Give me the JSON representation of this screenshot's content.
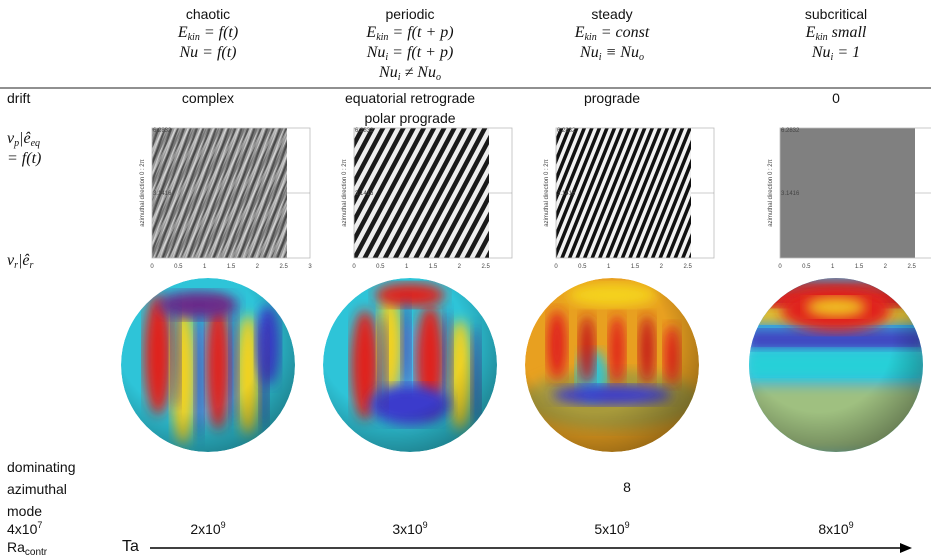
{
  "columns": [
    {
      "regime": "chaotic",
      "equations": [
        [
          "E",
          "kin",
          " = f(t)"
        ],
        [
          "Nu = f(t)"
        ]
      ],
      "drift": [
        "complex"
      ],
      "plot": {
        "yticks": [
          "6.2832",
          "3.1416"
        ],
        "xticks": [
          "0",
          "0.5",
          "1",
          "1.5",
          "2",
          "2.5",
          "3"
        ],
        "ylabel": "azimuthal direction 0 : 2π"
      },
      "ta": [
        "2x10",
        "9"
      ]
    },
    {
      "regime": "periodic",
      "equations": [
        [
          "E",
          "kin",
          " = f(t + p)"
        ],
        [
          "Nu",
          "i",
          " = f(t + p)"
        ],
        [
          "Nu",
          "i",
          " ≠ Nu",
          "o"
        ]
      ],
      "drift": [
        "equatorial retrograde",
        "polar prograde"
      ],
      "plot": {
        "yticks": [
          "6.2832",
          "3.1416"
        ],
        "xticks": [
          "0",
          "0.5",
          "1",
          "1.5",
          "2",
          "2.5"
        ],
        "ylabel": "azimuthal direction 0 : 2π"
      },
      "ta": [
        "3x10",
        "9"
      ]
    },
    {
      "regime": "steady",
      "equations": [
        [
          "E",
          "kin",
          " = const"
        ],
        [
          "Nu",
          "i",
          " ≡ Nu",
          "o"
        ]
      ],
      "drift": [
        "prograde"
      ],
      "plot": {
        "yticks": [
          "6.2832",
          "3.1416"
        ],
        "xticks": [
          "0",
          "0.5",
          "1",
          "1.5",
          "2",
          "2.5"
        ],
        "ylabel": "azimuthal direction 0 : 2π"
      },
      "mode": "8",
      "ta": [
        "5x10",
        "9"
      ]
    },
    {
      "regime": "subcritical",
      "equations": [
        [
          "E",
          "kin",
          " small"
        ],
        [
          "Nu",
          "i",
          " = 1"
        ]
      ],
      "drift": [
        "0"
      ],
      "plot": {
        "yticks": [
          "6.2832",
          "3.1416"
        ],
        "xticks": [
          "0",
          "0.5",
          "1",
          "1.5",
          "2",
          "2.5"
        ],
        "ylabel": "azimuthal direction 0 : 2π"
      },
      "ta": [
        "8x10",
        "9"
      ]
    }
  ],
  "row_labels": {
    "drift": "drift",
    "velocity_profile": [
      [
        "v",
        "p",
        "|ê",
        "eq"
      ],
      [
        "= f(t)"
      ]
    ],
    "radial_velocity": [
      "v",
      "r",
      "|ê",
      "r"
    ],
    "mode": "dominating azimuthal mode",
    "ra_value": [
      "4x10",
      "7"
    ],
    "ra_label": [
      "Ra",
      "contr"
    ],
    "ta": "Ta"
  }
}
